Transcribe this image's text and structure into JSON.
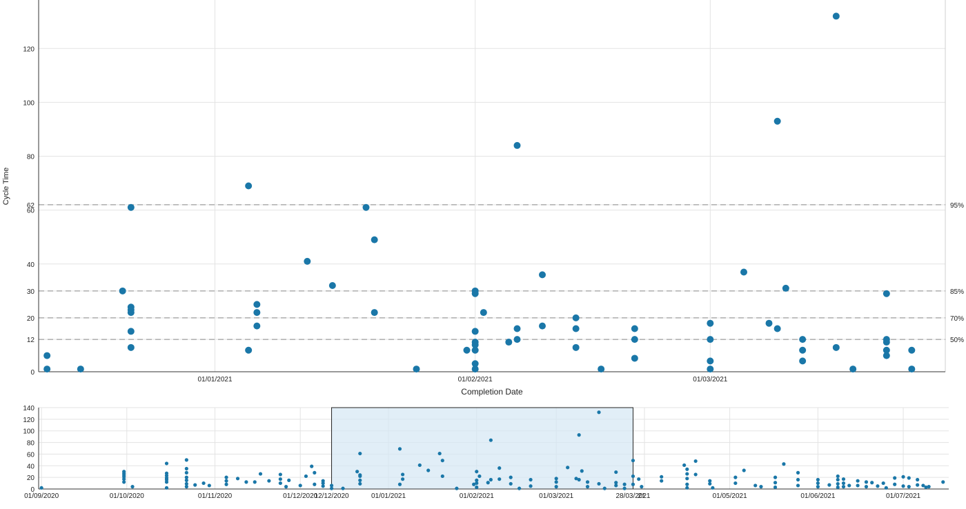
{
  "chart_data": [
    {
      "type": "scatter",
      "ylabel": "Cycle Time",
      "xlabel": "Completion Date",
      "xlim": [
        "2020-12-11",
        "2021-03-29"
      ],
      "ylim": [
        0,
        138
      ],
      "y_ticks": [
        0,
        12,
        20,
        30,
        40,
        60,
        62,
        80,
        100,
        120
      ],
      "x_ticks": [
        {
          "date": "2021-01-01",
          "label": "01/01/2021"
        },
        {
          "date": "2021-02-01",
          "label": "01/02/2021"
        },
        {
          "date": "2021-03-01",
          "label": "01/03/2021"
        }
      ],
      "percentile_lines": [
        {
          "label": "95%",
          "value": 62
        },
        {
          "label": "85%",
          "value": 30
        },
        {
          "label": "70%",
          "value": 20
        },
        {
          "label": "50%",
          "value": 12
        }
      ],
      "grid": true,
      "marker_color": "#1a77a8",
      "points": [
        {
          "x": "2020-12-12",
          "y": 6
        },
        {
          "x": "2020-12-12",
          "y": 1
        },
        {
          "x": "2020-12-16",
          "y": 1
        },
        {
          "x": "2020-12-21",
          "y": 30
        },
        {
          "x": "2020-12-22",
          "y": 24
        },
        {
          "x": "2020-12-22",
          "y": 23
        },
        {
          "x": "2020-12-22",
          "y": 22
        },
        {
          "x": "2020-12-22",
          "y": 15
        },
        {
          "x": "2020-12-22",
          "y": 9
        },
        {
          "x": "2020-12-22",
          "y": 61
        },
        {
          "x": "2021-01-05",
          "y": 69
        },
        {
          "x": "2021-01-05",
          "y": 8
        },
        {
          "x": "2021-01-06",
          "y": 25
        },
        {
          "x": "2021-01-06",
          "y": 22
        },
        {
          "x": "2021-01-06",
          "y": 17
        },
        {
          "x": "2021-01-12",
          "y": 41
        },
        {
          "x": "2021-01-15",
          "y": 32
        },
        {
          "x": "2021-01-19",
          "y": 61
        },
        {
          "x": "2021-01-20",
          "y": 49
        },
        {
          "x": "2021-01-20",
          "y": 22
        },
        {
          "x": "2021-01-25",
          "y": 1
        },
        {
          "x": "2021-01-31",
          "y": 8
        },
        {
          "x": "2021-02-01",
          "y": 30
        },
        {
          "x": "2021-02-01",
          "y": 29
        },
        {
          "x": "2021-02-01",
          "y": 15
        },
        {
          "x": "2021-02-01",
          "y": 11
        },
        {
          "x": "2021-02-01",
          "y": 10
        },
        {
          "x": "2021-02-01",
          "y": 8
        },
        {
          "x": "2021-02-01",
          "y": 3
        },
        {
          "x": "2021-02-01",
          "y": 1
        },
        {
          "x": "2021-02-02",
          "y": 22
        },
        {
          "x": "2021-02-05",
          "y": 11
        },
        {
          "x": "2021-02-06",
          "y": 84
        },
        {
          "x": "2021-02-06",
          "y": 16
        },
        {
          "x": "2021-02-06",
          "y": 12
        },
        {
          "x": "2021-02-09",
          "y": 36
        },
        {
          "x": "2021-02-09",
          "y": 17
        },
        {
          "x": "2021-02-13",
          "y": 20
        },
        {
          "x": "2021-02-13",
          "y": 16
        },
        {
          "x": "2021-02-13",
          "y": 9
        },
        {
          "x": "2021-02-16",
          "y": 1
        },
        {
          "x": "2021-02-20",
          "y": 16
        },
        {
          "x": "2021-02-20",
          "y": 12
        },
        {
          "x": "2021-02-20",
          "y": 5
        },
        {
          "x": "2021-03-01",
          "y": 18
        },
        {
          "x": "2021-03-01",
          "y": 12
        },
        {
          "x": "2021-03-01",
          "y": 4
        },
        {
          "x": "2021-03-01",
          "y": 1
        },
        {
          "x": "2021-03-05",
          "y": 37
        },
        {
          "x": "2021-03-08",
          "y": 18
        },
        {
          "x": "2021-03-09",
          "y": 93
        },
        {
          "x": "2021-03-09",
          "y": 16
        },
        {
          "x": "2021-03-10",
          "y": 31
        },
        {
          "x": "2021-03-12",
          "y": 12
        },
        {
          "x": "2021-03-12",
          "y": 8
        },
        {
          "x": "2021-03-12",
          "y": 4
        },
        {
          "x": "2021-03-16",
          "y": 132
        },
        {
          "x": "2021-03-16",
          "y": 9
        },
        {
          "x": "2021-03-18",
          "y": 1
        },
        {
          "x": "2021-03-22",
          "y": 29
        },
        {
          "x": "2021-03-22",
          "y": 12
        },
        {
          "x": "2021-03-22",
          "y": 11
        },
        {
          "x": "2021-03-22",
          "y": 8
        },
        {
          "x": "2021-03-22",
          "y": 6
        },
        {
          "x": "2021-03-25",
          "y": 8
        },
        {
          "x": "2021-03-25",
          "y": 1
        }
      ]
    },
    {
      "type": "scatter",
      "xlim": [
        "2020-08-31",
        "2021-07-17"
      ],
      "ylim": [
        0,
        140
      ],
      "y_ticks": [
        0,
        20,
        40,
        60,
        80,
        100,
        120,
        140
      ],
      "x_ticks": [
        {
          "date": "2020-09-01",
          "label": "01/09/2020"
        },
        {
          "date": "2020-10-01",
          "label": "01/10/2020"
        },
        {
          "date": "2020-11-01",
          "label": "01/11/2020"
        },
        {
          "date": "2020-12-01",
          "label": "01/12/2020"
        },
        {
          "date": "2020-12-12",
          "label": "12/12/2020"
        },
        {
          "date": "2021-01-01",
          "label": "01/01/2021"
        },
        {
          "date": "2021-02-01",
          "label": "01/02/2021"
        },
        {
          "date": "2021-03-01",
          "label": "01/03/2021"
        },
        {
          "date": "2021-03-28",
          "label": "28/03/2021"
        },
        {
          "date": "2021-04-01",
          "label": "21"
        },
        {
          "date": "2021-05-01",
          "label": "01/05/2021"
        },
        {
          "date": "2021-06-01",
          "label": "01/06/2021"
        },
        {
          "date": "2021-07-01",
          "label": "01/07/2021"
        }
      ],
      "selection": [
        "2020-12-12",
        "2021-03-28"
      ],
      "grid": true,
      "marker_color": "#1a77a8",
      "points": [
        {
          "x": "2020-09-01",
          "y": 2
        },
        {
          "x": "2020-09-30",
          "y": 30
        },
        {
          "x": "2020-09-30",
          "y": 27
        },
        {
          "x": "2020-09-30",
          "y": 24
        },
        {
          "x": "2020-09-30",
          "y": 21
        },
        {
          "x": "2020-09-30",
          "y": 17
        },
        {
          "x": "2020-09-30",
          "y": 12
        },
        {
          "x": "2020-10-03",
          "y": 4
        },
        {
          "x": "2020-10-15",
          "y": 44
        },
        {
          "x": "2020-10-15",
          "y": 27
        },
        {
          "x": "2020-10-15",
          "y": 23
        },
        {
          "x": "2020-10-15",
          "y": 19
        },
        {
          "x": "2020-10-15",
          "y": 16
        },
        {
          "x": "2020-10-15",
          "y": 12
        },
        {
          "x": "2020-10-15",
          "y": 2
        },
        {
          "x": "2020-10-22",
          "y": 50
        },
        {
          "x": "2020-10-22",
          "y": 35
        },
        {
          "x": "2020-10-22",
          "y": 28
        },
        {
          "x": "2020-10-22",
          "y": 20
        },
        {
          "x": "2020-10-22",
          "y": 15
        },
        {
          "x": "2020-10-22",
          "y": 9
        },
        {
          "x": "2020-10-22",
          "y": 4
        },
        {
          "x": "2020-10-25",
          "y": 7
        },
        {
          "x": "2020-10-28",
          "y": 10
        },
        {
          "x": "2020-10-30",
          "y": 6
        },
        {
          "x": "2020-11-05",
          "y": 20
        },
        {
          "x": "2020-11-05",
          "y": 14
        },
        {
          "x": "2020-11-05",
          "y": 8
        },
        {
          "x": "2020-11-09",
          "y": 18
        },
        {
          "x": "2020-11-12",
          "y": 12
        },
        {
          "x": "2020-11-15",
          "y": 12
        },
        {
          "x": "2020-11-17",
          "y": 26
        },
        {
          "x": "2020-11-20",
          "y": 14
        },
        {
          "x": "2020-11-24",
          "y": 25
        },
        {
          "x": "2020-11-24",
          "y": 17
        },
        {
          "x": "2020-11-24",
          "y": 10
        },
        {
          "x": "2020-11-26",
          "y": 4
        },
        {
          "x": "2020-11-27",
          "y": 15
        },
        {
          "x": "2020-12-01",
          "y": 6
        },
        {
          "x": "2020-12-03",
          "y": 22
        },
        {
          "x": "2020-12-05",
          "y": 39
        },
        {
          "x": "2020-12-06",
          "y": 28
        },
        {
          "x": "2020-12-06",
          "y": 8
        },
        {
          "x": "2020-12-09",
          "y": 14
        },
        {
          "x": "2020-12-09",
          "y": 10
        },
        {
          "x": "2020-12-09",
          "y": 5
        },
        {
          "x": "2020-12-12",
          "y": 6
        },
        {
          "x": "2020-12-12",
          "y": 1
        },
        {
          "x": "2020-12-16",
          "y": 1
        },
        {
          "x": "2020-12-21",
          "y": 30
        },
        {
          "x": "2020-12-22",
          "y": 61
        },
        {
          "x": "2020-12-22",
          "y": 24
        },
        {
          "x": "2020-12-22",
          "y": 22
        },
        {
          "x": "2020-12-22",
          "y": 15
        },
        {
          "x": "2020-12-22",
          "y": 9
        },
        {
          "x": "2021-01-05",
          "y": 69
        },
        {
          "x": "2021-01-05",
          "y": 8
        },
        {
          "x": "2021-01-06",
          "y": 25
        },
        {
          "x": "2021-01-06",
          "y": 17
        },
        {
          "x": "2021-01-12",
          "y": 41
        },
        {
          "x": "2021-01-15",
          "y": 32
        },
        {
          "x": "2021-01-19",
          "y": 61
        },
        {
          "x": "2021-01-20",
          "y": 49
        },
        {
          "x": "2021-01-20",
          "y": 22
        },
        {
          "x": "2021-01-25",
          "y": 1
        },
        {
          "x": "2021-01-31",
          "y": 8
        },
        {
          "x": "2021-02-01",
          "y": 30
        },
        {
          "x": "2021-02-01",
          "y": 15
        },
        {
          "x": "2021-02-01",
          "y": 10
        },
        {
          "x": "2021-02-01",
          "y": 3
        },
        {
          "x": "2021-02-02",
          "y": 22
        },
        {
          "x": "2021-02-05",
          "y": 11
        },
        {
          "x": "2021-02-06",
          "y": 84
        },
        {
          "x": "2021-02-06",
          "y": 16
        },
        {
          "x": "2021-02-09",
          "y": 36
        },
        {
          "x": "2021-02-09",
          "y": 17
        },
        {
          "x": "2021-02-13",
          "y": 20
        },
        {
          "x": "2021-02-13",
          "y": 9
        },
        {
          "x": "2021-02-16",
          "y": 1
        },
        {
          "x": "2021-02-20",
          "y": 16
        },
        {
          "x": "2021-02-20",
          "y": 5
        },
        {
          "x": "2021-03-01",
          "y": 18
        },
        {
          "x": "2021-03-01",
          "y": 12
        },
        {
          "x": "2021-03-01",
          "y": 4
        },
        {
          "x": "2021-03-05",
          "y": 37
        },
        {
          "x": "2021-03-08",
          "y": 18
        },
        {
          "x": "2021-03-09",
          "y": 93
        },
        {
          "x": "2021-03-09",
          "y": 16
        },
        {
          "x": "2021-03-10",
          "y": 31
        },
        {
          "x": "2021-03-12",
          "y": 12
        },
        {
          "x": "2021-03-12",
          "y": 4
        },
        {
          "x": "2021-03-16",
          "y": 132
        },
        {
          "x": "2021-03-16",
          "y": 9
        },
        {
          "x": "2021-03-18",
          "y": 1
        },
        {
          "x": "2021-03-22",
          "y": 29
        },
        {
          "x": "2021-03-22",
          "y": 11
        },
        {
          "x": "2021-03-22",
          "y": 6
        },
        {
          "x": "2021-03-25",
          "y": 8
        },
        {
          "x": "2021-03-25",
          "y": 1
        },
        {
          "x": "2021-03-28",
          "y": 49
        },
        {
          "x": "2021-03-28",
          "y": 22
        },
        {
          "x": "2021-03-28",
          "y": 8
        },
        {
          "x": "2021-03-30",
          "y": 17
        },
        {
          "x": "2021-03-31",
          "y": 4
        },
        {
          "x": "2021-04-07",
          "y": 21
        },
        {
          "x": "2021-04-07",
          "y": 14
        },
        {
          "x": "2021-04-15",
          "y": 41
        },
        {
          "x": "2021-04-16",
          "y": 34
        },
        {
          "x": "2021-04-16",
          "y": 26
        },
        {
          "x": "2021-04-16",
          "y": 18
        },
        {
          "x": "2021-04-16",
          "y": 8
        },
        {
          "x": "2021-04-16",
          "y": 2
        },
        {
          "x": "2021-04-19",
          "y": 48
        },
        {
          "x": "2021-04-19",
          "y": 25
        },
        {
          "x": "2021-04-24",
          "y": 14
        },
        {
          "x": "2021-04-24",
          "y": 9
        },
        {
          "x": "2021-04-25",
          "y": 2
        },
        {
          "x": "2021-05-03",
          "y": 20
        },
        {
          "x": "2021-05-03",
          "y": 10
        },
        {
          "x": "2021-05-06",
          "y": 32
        },
        {
          "x": "2021-05-10",
          "y": 6
        },
        {
          "x": "2021-05-12",
          "y": 4
        },
        {
          "x": "2021-05-17",
          "y": 20
        },
        {
          "x": "2021-05-17",
          "y": 11
        },
        {
          "x": "2021-05-17",
          "y": 3
        },
        {
          "x": "2021-05-20",
          "y": 43
        },
        {
          "x": "2021-05-25",
          "y": 28
        },
        {
          "x": "2021-05-25",
          "y": 16
        },
        {
          "x": "2021-05-25",
          "y": 6
        },
        {
          "x": "2021-06-01",
          "y": 16
        },
        {
          "x": "2021-06-01",
          "y": 10
        },
        {
          "x": "2021-06-01",
          "y": 4
        },
        {
          "x": "2021-06-05",
          "y": 7
        },
        {
          "x": "2021-06-08",
          "y": 22
        },
        {
          "x": "2021-06-08",
          "y": 16
        },
        {
          "x": "2021-06-08",
          "y": 9
        },
        {
          "x": "2021-06-08",
          "y": 3
        },
        {
          "x": "2021-06-10",
          "y": 17
        },
        {
          "x": "2021-06-10",
          "y": 10
        },
        {
          "x": "2021-06-10",
          "y": 4
        },
        {
          "x": "2021-06-12",
          "y": 6
        },
        {
          "x": "2021-06-15",
          "y": 14
        },
        {
          "x": "2021-06-15",
          "y": 6
        },
        {
          "x": "2021-06-18",
          "y": 12
        },
        {
          "x": "2021-06-18",
          "y": 4
        },
        {
          "x": "2021-06-20",
          "y": 11
        },
        {
          "x": "2021-06-22",
          "y": 5
        },
        {
          "x": "2021-06-24",
          "y": 10
        },
        {
          "x": "2021-06-25",
          "y": 2
        },
        {
          "x": "2021-06-28",
          "y": 19
        },
        {
          "x": "2021-06-28",
          "y": 8
        },
        {
          "x": "2021-07-01",
          "y": 21
        },
        {
          "x": "2021-07-01",
          "y": 5
        },
        {
          "x": "2021-07-03",
          "y": 19
        },
        {
          "x": "2021-07-03",
          "y": 4
        },
        {
          "x": "2021-07-06",
          "y": 16
        },
        {
          "x": "2021-07-06",
          "y": 7
        },
        {
          "x": "2021-07-08",
          "y": 6
        },
        {
          "x": "2021-07-09",
          "y": 3
        },
        {
          "x": "2021-07-10",
          "y": 4
        },
        {
          "x": "2021-07-15",
          "y": 12
        }
      ]
    }
  ]
}
